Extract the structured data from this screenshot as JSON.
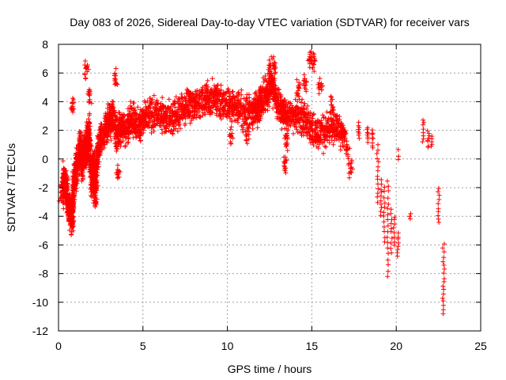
{
  "chart_data": {
    "type": "scatter",
    "title": "Day 083 of 2026, Sidereal Day-to-day VTEC variation (SDTVAR) for receiver vars",
    "xlabel": "GPS time / hours",
    "ylabel": "SDTVAR / TECUs",
    "xlim": [
      0,
      25
    ],
    "ylim": [
      -12,
      8
    ],
    "xticks": [
      0,
      5,
      10,
      15,
      20,
      25
    ],
    "yticks": [
      -12,
      -10,
      -8,
      -6,
      -4,
      -2,
      0,
      2,
      4,
      6,
      8
    ],
    "grid": true,
    "marker": "+",
    "colors": {
      "series": "#ff0000",
      "grid": "#a0a0a0",
      "axis": "#000000"
    },
    "series": [
      {
        "name": "SDTVAR",
        "trace": [
          [
            0.25,
            -2.2
          ],
          [
            0.35,
            -1.2
          ],
          [
            0.5,
            -2.6
          ],
          [
            0.65,
            -3.5
          ],
          [
            0.8,
            -4.2
          ],
          [
            0.9,
            -2.0
          ],
          [
            1.0,
            -0.8
          ],
          [
            1.2,
            0.0
          ],
          [
            1.3,
            1.0
          ],
          [
            1.4,
            -0.5
          ],
          [
            1.5,
            0.5
          ],
          [
            1.6,
            0.5
          ],
          [
            1.7,
            1.3
          ],
          [
            1.8,
            2.0
          ],
          [
            1.9,
            -0.5
          ],
          [
            2.0,
            -1.5
          ],
          [
            2.1,
            -0.4
          ],
          [
            2.2,
            -2.2
          ],
          [
            2.3,
            0.5
          ],
          [
            2.5,
            1.5
          ],
          [
            2.8,
            2.0
          ],
          [
            3.0,
            2.6
          ],
          [
            3.2,
            3.0
          ],
          [
            3.5,
            1.5
          ],
          [
            3.7,
            2.5
          ],
          [
            4.0,
            2.0
          ],
          [
            4.3,
            2.8
          ],
          [
            4.7,
            2.2
          ],
          [
            5.0,
            2.8
          ],
          [
            5.5,
            3.0
          ],
          [
            6.0,
            3.2
          ],
          [
            6.5,
            2.8
          ],
          [
            7.0,
            3.2
          ],
          [
            7.5,
            3.5
          ],
          [
            8.0,
            3.8
          ],
          [
            8.5,
            4.0
          ],
          [
            9.0,
            4.2
          ],
          [
            9.5,
            4.0
          ],
          [
            10.0,
            3.8
          ],
          [
            10.5,
            3.6
          ],
          [
            11.0,
            3.2
          ],
          [
            11.5,
            3.3
          ],
          [
            11.8,
            3.5
          ],
          [
            12.0,
            4.0
          ],
          [
            12.3,
            4.5
          ],
          [
            12.6,
            5.5
          ],
          [
            12.9,
            4.2
          ],
          [
            13.2,
            3.5
          ],
          [
            13.5,
            3.0
          ],
          [
            14.0,
            3.2
          ],
          [
            14.5,
            2.8
          ],
          [
            15.0,
            2.2
          ],
          [
            15.5,
            1.8
          ],
          [
            16.0,
            2.0
          ],
          [
            16.5,
            2.3
          ],
          [
            17.0,
            1.5
          ]
        ],
        "bursts": [
          [
            0.2,
            -2.6
          ],
          [
            0.45,
            -2.3
          ],
          [
            0.7,
            -3.8
          ],
          [
            0.85,
            3.8
          ],
          [
            1.65,
            6.1
          ],
          [
            1.85,
            4.4
          ],
          [
            2.15,
            -2.9
          ],
          [
            3.4,
            5.5
          ],
          [
            3.5,
            -1.0
          ],
          [
            6.3,
            3.2
          ],
          [
            7.8,
            4.2
          ],
          [
            8.8,
            4.8
          ],
          [
            9.3,
            4.6
          ],
          [
            10.2,
            1.6
          ],
          [
            11.2,
            1.8
          ],
          [
            12.5,
            6.3
          ],
          [
            12.8,
            6.6
          ],
          [
            13.3,
            3.0
          ],
          [
            13.5,
            1.2
          ],
          [
            13.4,
            -0.4
          ],
          [
            14.2,
            5.0
          ],
          [
            14.6,
            5.5
          ],
          [
            14.9,
            7.0
          ],
          [
            15.1,
            6.9
          ],
          [
            15.5,
            5.0
          ],
          [
            16.2,
            3.5
          ],
          [
            16.8,
            1.8
          ],
          [
            17.1,
            0.5
          ],
          [
            17.3,
            -0.5
          ]
        ],
        "segments": [
          {
            "x": 17.8,
            "y0": 1.5,
            "y1": 2.5,
            "n": 8
          },
          {
            "x": 18.3,
            "y0": 1.2,
            "y1": 2.2,
            "n": 8
          },
          {
            "x": 18.6,
            "y0": 0.8,
            "y1": 2.0,
            "n": 8
          },
          {
            "x": 18.9,
            "y0": -3.0,
            "y1": 1.0,
            "n": 14
          },
          {
            "x": 19.1,
            "y0": -4.0,
            "y1": -1.5,
            "n": 10
          },
          {
            "x": 19.3,
            "y0": -5.8,
            "y1": -2.0,
            "n": 12
          },
          {
            "x": 19.5,
            "y0": -8.2,
            "y1": -1.5,
            "n": 18
          },
          {
            "x": 19.7,
            "y0": -6.5,
            "y1": -3.5,
            "n": 10
          },
          {
            "x": 19.9,
            "y0": -6.0,
            "y1": -4.0,
            "n": 8
          },
          {
            "x": 20.1,
            "y0": -6.8,
            "y1": -5.2,
            "n": 8
          },
          {
            "x": 20.15,
            "y0": 0.0,
            "y1": 0.6,
            "n": 3
          },
          {
            "x": 20.8,
            "y0": -4.2,
            "y1": -3.8,
            "n": 3
          },
          {
            "x": 21.6,
            "y0": 1.2,
            "y1": 2.8,
            "n": 8
          },
          {
            "x": 21.9,
            "y0": 0.8,
            "y1": 2.0,
            "n": 8
          },
          {
            "x": 22.1,
            "y0": 0.8,
            "y1": 1.6,
            "n": 5
          },
          {
            "x": 22.5,
            "y0": -4.5,
            "y1": -2.0,
            "n": 10
          },
          {
            "x": 22.8,
            "y0": -10.8,
            "y1": -6.0,
            "n": 18
          }
        ]
      }
    ]
  }
}
